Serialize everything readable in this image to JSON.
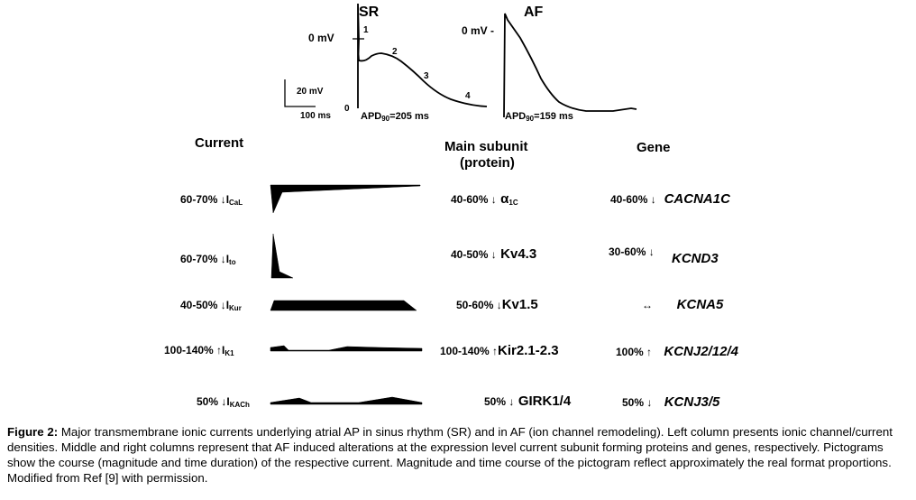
{
  "traces": {
    "sr_title": "SR",
    "af_title": "AF",
    "zero_mv": "0 mV",
    "zero_mv_af": "0 mV -",
    "scale_mv": "20 mV",
    "scale_ms": "100 ms",
    "phases": [
      "0",
      "1",
      "2",
      "3",
      "4"
    ],
    "sr_apd_prefix": "APD",
    "sr_apd_sub": "90",
    "sr_apd_value": "=205 ms",
    "af_apd_prefix": "APD",
    "af_apd_sub": "90",
    "af_apd_value": "=159 ms"
  },
  "headers": {
    "current": "Current",
    "subunit_line1": "Main subunit",
    "subunit_line2": "(protein)",
    "gene": "Gene"
  },
  "rows": [
    {
      "current_change": "60-70% ↓I",
      "current_sub": "CaL",
      "protein_change": "40-60% ↓",
      "protein": "α",
      "protein_sub": "1C",
      "gene_change": "40-60% ↓",
      "gene": "CACNA1C"
    },
    {
      "current_change": "60-70% ↓I",
      "current_sub": "to",
      "protein_change": "40-50% ↓",
      "protein": "Kv4.3",
      "protein_sub": "",
      "gene_change": "30-60% ↓",
      "gene": "KCND3"
    },
    {
      "current_change": "40-50% ↓I",
      "current_sub": "Kur",
      "protein_change": "50-60% ↓",
      "protein": "Kv1.5",
      "protein_sub": "",
      "gene_change": "↔",
      "gene": "KCNA5"
    },
    {
      "current_change": "100-140% ↑I",
      "current_sub": "K1",
      "protein_change": "100-140% ↑",
      "protein": "Kir2.1-2.3",
      "protein_sub": "",
      "gene_change": "100% ↑",
      "gene": "KCNJ2/12/4"
    },
    {
      "current_change": "50% ↓I",
      "current_sub": "KACh",
      "protein_change": "50% ↓",
      "protein": "GIRK1/4",
      "protein_sub": "",
      "gene_change": "50% ↓",
      "gene": "KCNJ3/5"
    }
  ],
  "caption": {
    "label": "Figure 2:",
    "text": " Major transmembrane ionic currents underlying atrial AP in sinus rhythm (SR) and in AF (ion channel remodeling). Left column presents ionic channel/current densities. Middle and right columns represent that AF induced alterations at the expression level current subunit forming proteins and genes, respectively. Pictograms show the course (magnitude and time duration) of the respective current. Magnitude and time course of the pictogram reflect approximately the real format proportions. Modified from Ref [9] with permission."
  }
}
